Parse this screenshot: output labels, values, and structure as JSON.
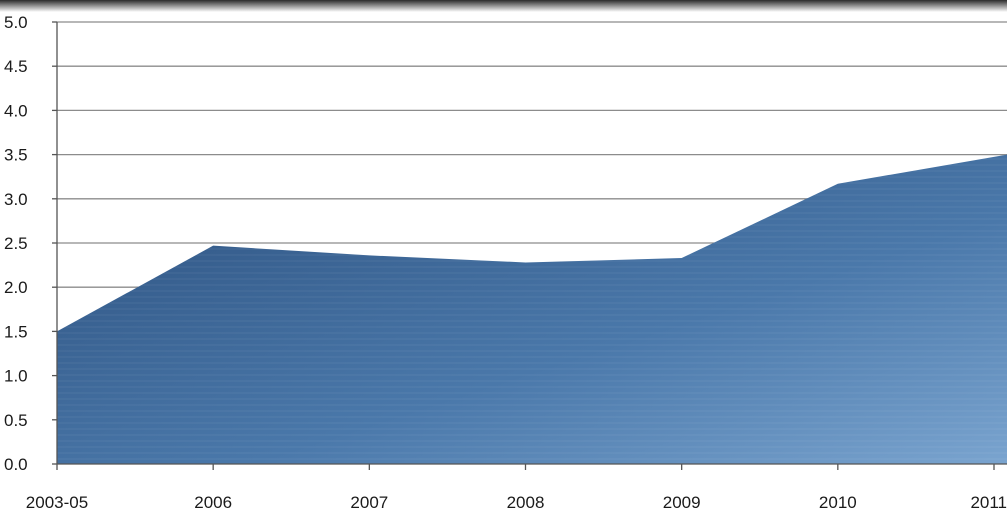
{
  "chart_data": {
    "type": "area",
    "title": "",
    "xlabel": "",
    "ylabel": "",
    "categories": [
      "2003-05",
      "2006",
      "2007",
      "2008",
      "2009",
      "2010",
      "2011"
    ],
    "values": [
      1.5,
      2.47,
      2.36,
      2.28,
      2.33,
      3.17,
      3.5
    ],
    "ylim": [
      0,
      5
    ],
    "yticks": [
      "0.0",
      "0.5",
      "1.0",
      "1.5",
      "2.0",
      "2.5",
      "3.0",
      "3.5",
      "4.0",
      "4.5",
      "5.0"
    ],
    "grid": true,
    "legend": "none",
    "colors": {
      "area_dark": "#2b4f7d",
      "area_mid": "#4a78aa",
      "area_light": "#7aa4cf",
      "gridline": "#8c8c8c",
      "axis": "#555555",
      "top_shadow": "#333333"
    }
  }
}
